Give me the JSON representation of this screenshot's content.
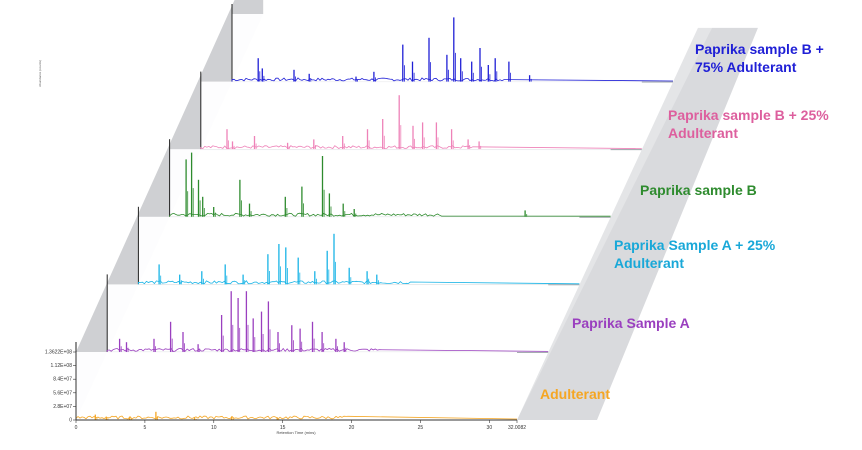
{
  "chart_data": {
    "type": "line",
    "layout": "3d-stacked-waterfall",
    "xlabel": "Retention Time (mins)",
    "ylabel": "Abundance (counts)",
    "x_ticks": [
      "0",
      "5",
      "10",
      "15",
      "20",
      "25",
      "30",
      "32.0082"
    ],
    "y_ticks": [
      "0",
      "2.8E+07",
      "5.6E+07",
      "8.4E+07",
      "1.12E+08",
      "1.3622E+08"
    ],
    "xlim": [
      0,
      32.0082
    ],
    "ylim": [
      0,
      136220000
    ],
    "series": [
      {
        "name": "Paprika sample B + 75% Adulterant",
        "color": "#1f1fd6",
        "peaks": [
          [
            1.9,
            0.35
          ],
          [
            2.2,
            0.2
          ],
          [
            4.5,
            0.18
          ],
          [
            5.6,
            0.12
          ],
          [
            9,
            0.08
          ],
          [
            10.3,
            0.15
          ],
          [
            12.4,
            0.55
          ],
          [
            13.1,
            0.3
          ],
          [
            14.3,
            0.65
          ],
          [
            15.6,
            0.4
          ],
          [
            16.1,
            0.95
          ],
          [
            16.6,
            0.35
          ],
          [
            17.4,
            0.3
          ],
          [
            18,
            0.5
          ],
          [
            18.6,
            0.25
          ],
          [
            19.1,
            0.35
          ],
          [
            20.1,
            0.3
          ],
          [
            21.6,
            0.1
          ]
        ]
      },
      {
        "name": "Paprika sample B + 25% Adulterant",
        "color": "#ee82b8",
        "peaks": [
          [
            1.9,
            0.3
          ],
          [
            2.3,
            0.12
          ],
          [
            3.9,
            0.2
          ],
          [
            6.3,
            0.1
          ],
          [
            8.2,
            0.15
          ],
          [
            10.3,
            0.2
          ],
          [
            12.1,
            0.3
          ],
          [
            13.2,
            0.45
          ],
          [
            14.4,
            0.8
          ],
          [
            15.4,
            0.35
          ],
          [
            16.1,
            0.4
          ],
          [
            17.1,
            0.4
          ],
          [
            18.2,
            0.3
          ],
          [
            19.4,
            0.15
          ],
          [
            20.2,
            0.12
          ]
        ]
      },
      {
        "name": "Paprika sample B",
        "color": "#2e8b2e",
        "peaks": [
          [
            1.2,
            0.85
          ],
          [
            1.6,
            0.95
          ],
          [
            2.1,
            0.55
          ],
          [
            2.4,
            0.3
          ],
          [
            3.2,
            0.15
          ],
          [
            5.1,
            0.55
          ],
          [
            5.8,
            0.2
          ],
          [
            8.4,
            0.3
          ],
          [
            9.6,
            0.45
          ],
          [
            11.1,
            0.9
          ],
          [
            11.6,
            0.35
          ],
          [
            12.6,
            0.2
          ],
          [
            13.4,
            0.12
          ],
          [
            25.8,
            0.1
          ]
        ]
      },
      {
        "name": "Paprika Sample A + 25% Adulterant",
        "color": "#19b4e6",
        "peaks": [
          [
            1.5,
            0.3
          ],
          [
            3,
            0.15
          ],
          [
            4.6,
            0.2
          ],
          [
            6.3,
            0.3
          ],
          [
            7.6,
            0.15
          ],
          [
            9.4,
            0.45
          ],
          [
            10.2,
            0.6
          ],
          [
            10.7,
            0.55
          ],
          [
            11.6,
            0.4
          ],
          [
            12.8,
            0.2
          ],
          [
            13.7,
            0.5
          ],
          [
            14.2,
            0.75
          ],
          [
            15.3,
            0.25
          ],
          [
            16.6,
            0.2
          ],
          [
            17.3,
            0.15
          ]
        ]
      },
      {
        "name": "Paprika Sample A",
        "color": "#9a3fbf",
        "peaks": [
          [
            0.9,
            0.2
          ],
          [
            1.4,
            0.15
          ],
          [
            3.4,
            0.2
          ],
          [
            4.6,
            0.45
          ],
          [
            5.5,
            0.3
          ],
          [
            6.6,
            0.12
          ],
          [
            8.3,
            0.55
          ],
          [
            9,
            0.9
          ],
          [
            9.5,
            0.8
          ],
          [
            10.1,
            0.9
          ],
          [
            10.6,
            0.5
          ],
          [
            11.2,
            0.6
          ],
          [
            11.7,
            0.75
          ],
          [
            12.4,
            0.3
          ],
          [
            13.4,
            0.4
          ],
          [
            14,
            0.35
          ],
          [
            14.9,
            0.45
          ],
          [
            15.6,
            0.3
          ],
          [
            16.6,
            0.2
          ],
          [
            17.2,
            0.15
          ]
        ]
      },
      {
        "name": "Adulterant",
        "color": "#f5a623",
        "peaks": [
          [
            1.4,
            0.08
          ],
          [
            2.2,
            0.05
          ],
          [
            3.9,
            0.04
          ],
          [
            5.8,
            0.12
          ],
          [
            8.6,
            0.04
          ],
          [
            11.3,
            0.05
          ],
          [
            14.6,
            0.04
          ]
        ]
      }
    ],
    "grid": false,
    "legend": "labels beside each trace"
  }
}
